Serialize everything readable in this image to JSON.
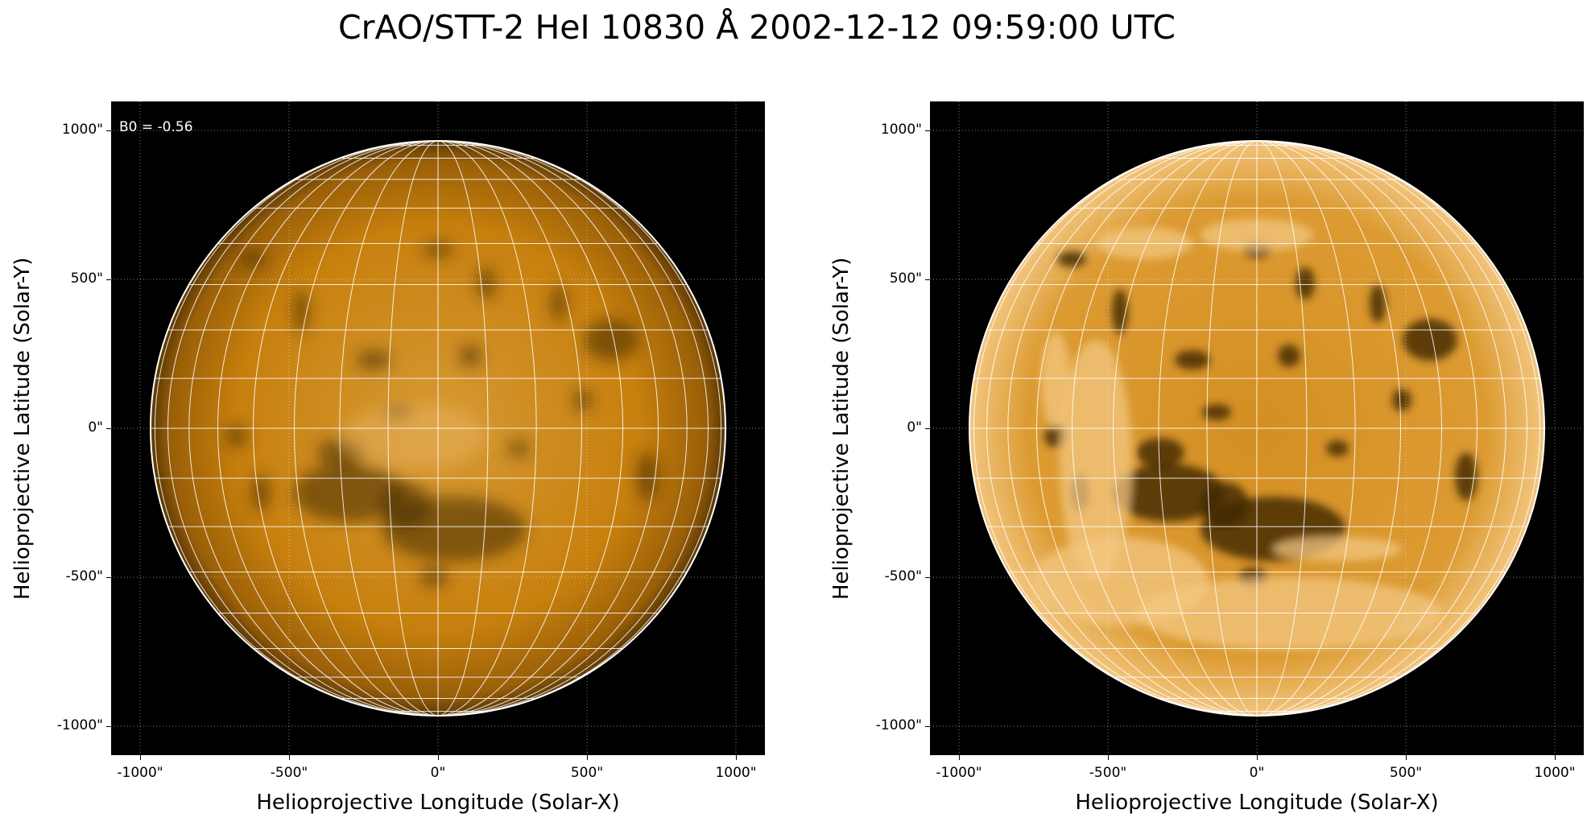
{
  "title": "CrAO/STT-2 HeI 10830 Å 2002-12-12 09:59:00 UTC",
  "colors": {
    "disk_base": "#c7800d",
    "disk_bright": "#f3c781",
    "disk_dark": "#3e2606",
    "background": "#000000",
    "grid": "#ffffff"
  },
  "panels": [
    {
      "annotation": "B0 = -0.56",
      "xlabel": "Helioprojective Longitude (Solar-X)",
      "ylabel": "Helioprojective Latitude (Solar-Y)",
      "xticks": [
        "-1000\"",
        "-500\"",
        "0\"",
        "500\"",
        "1000\""
      ],
      "yticks": [
        "1000\"",
        "500\"",
        "0\"",
        "-500\"",
        "-1000\""
      ],
      "style": "smooth"
    },
    {
      "annotation": "",
      "xlabel": "Helioprojective Longitude (Solar-X)",
      "ylabel": "Helioprojective Latitude (Solar-Y)",
      "xticks": [
        "-1000\"",
        "-500\"",
        "0\"",
        "500\"",
        "1000\""
      ],
      "yticks": [
        "1000\"",
        "500\"",
        "0\"",
        "-500\"",
        "-1000\""
      ],
      "style": "enhanced"
    }
  ]
}
